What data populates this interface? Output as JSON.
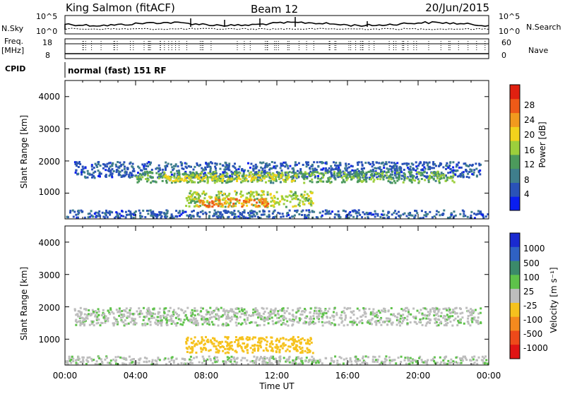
{
  "header": {
    "station": "King Salmon (fitACF)",
    "beam": "Beam 12",
    "date": "20/Jun/2015"
  },
  "noise_panel": {
    "left_label": "N.Sky",
    "right_label": "N.Search",
    "left_ticks": [
      "10^5",
      "10^0"
    ],
    "right_ticks": [
      "10^5",
      "10^0"
    ]
  },
  "freq_panel": {
    "left_label_1": "Freq.",
    "left_label_2": "[MHz]",
    "right_label": "Nave",
    "left_ticks": [
      "18",
      "8"
    ],
    "right_ticks": [
      "60",
      "0"
    ]
  },
  "cpid": {
    "label": "CPID",
    "text": "normal (fast) 151 RF"
  },
  "axes": {
    "ylabel": "Slant Range [km]",
    "xlabel": "Time UT",
    "y_ticks": [
      "1000",
      "2000",
      "3000",
      "4000"
    ],
    "x_ticks": [
      "00:00",
      "04:00",
      "08:00",
      "12:00",
      "16:00",
      "20:00",
      "00:00"
    ]
  },
  "power_colorbar": {
    "label": "Power [dB]",
    "ticks": [
      "4",
      "8",
      "12",
      "16",
      "20",
      "24",
      "28"
    ],
    "colors": [
      "#0a1ef0",
      "#2a52b8",
      "#3f7e8c",
      "#4c9a5c",
      "#9ccf3c",
      "#f2d21c",
      "#f29a1e",
      "#ee5a18",
      "#e02010"
    ]
  },
  "velocity_colorbar": {
    "label": "Velocity [m s⁻¹]",
    "ticks": [
      "1000",
      "500",
      "100",
      "25",
      "-25",
      "-100",
      "-500",
      "-1000"
    ],
    "colors": [
      "#1a2ad0",
      "#2f61c4",
      "#3b8a6a",
      "#5ec24a",
      "#bdbdbd",
      "#f6c21e",
      "#f58a1e",
      "#ee4a1a",
      "#e01414"
    ]
  },
  "chart_data": {
    "type": "heatmap",
    "x": {
      "label": "Time UT",
      "range_hours": [
        0,
        24
      ]
    },
    "y": {
      "label": "Slant Range [km]",
      "range_km": [
        200,
        4500
      ]
    },
    "power_regions": [
      {
        "t": [
          0.5,
          23.5
        ],
        "r": [
          1500,
          2000
        ],
        "db": 6
      },
      {
        "t": [
          4.0,
          22.0
        ],
        "r": [
          1350,
          1700
        ],
        "db": 13
      },
      {
        "t": [
          5.5,
          13.0
        ],
        "r": [
          1400,
          1600
        ],
        "db": 18
      },
      {
        "t": [
          6.8,
          14.0
        ],
        "r": [
          600,
          1100
        ],
        "db": 16
      },
      {
        "t": [
          7.5,
          11.5
        ],
        "r": [
          600,
          850
        ],
        "db": 25
      },
      {
        "t": [
          0.0,
          24.0
        ],
        "r": [
          250,
          500
        ],
        "db": 6
      }
    ],
    "velocity_regions": [
      {
        "t": [
          0.5,
          23.5
        ],
        "r": [
          1450,
          2000
        ],
        "v": 0
      },
      {
        "t": [
          6.8,
          14.0
        ],
        "r": [
          600,
          1100
        ],
        "v": -60
      },
      {
        "t": [
          0.0,
          24.0
        ],
        "r": [
          250,
          500
        ],
        "v": 0
      }
    ]
  }
}
